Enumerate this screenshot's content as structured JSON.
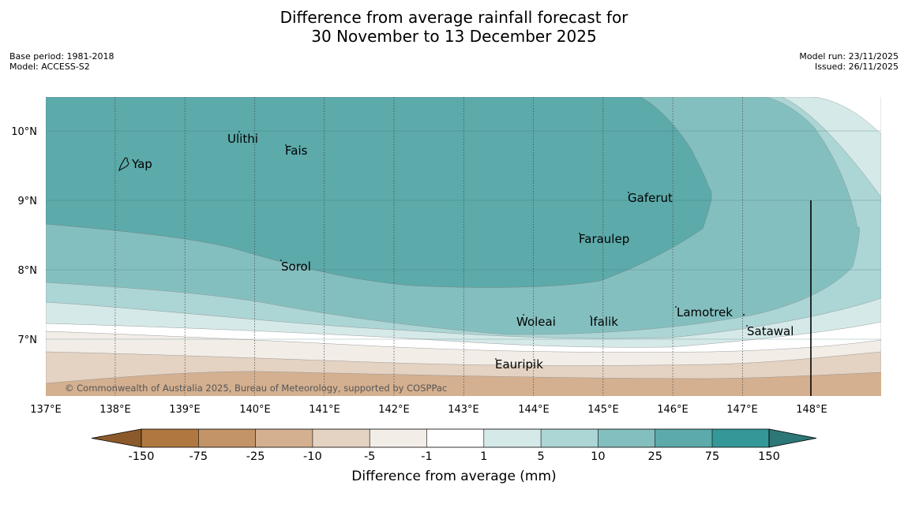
{
  "title": {
    "line1": "Difference from average rainfall forecast for",
    "line2": "30 November to 13 December 2025"
  },
  "meta": {
    "base_period": "Base period: 1981-2018",
    "model": "Model: ACCESS-S2",
    "model_run": "Model run: 23/11/2025",
    "issued": "Issued: 26/11/2025"
  },
  "map": {
    "lon_labels": [
      "137°E",
      "138°E",
      "139°E",
      "140°E",
      "141°E",
      "142°E",
      "143°E",
      "144°E",
      "145°E",
      "146°E",
      "147°E",
      "148°E"
    ],
    "lat_labels": [
      "10°N",
      "9°N",
      "8°N",
      "7°N"
    ],
    "places": [
      "Ulithi",
      "Fais",
      "Yap",
      "Gaferut",
      "Faraulep",
      "Sorol",
      "Lamotrek",
      "Woleai",
      "Ifalik",
      "Satawal",
      "Eauripik"
    ],
    "copyright": "© Commonwealth of Australia 2025, Bureau of Meteorology, supported by COSPPac"
  },
  "colorbar": {
    "ticks": [
      "-150",
      "-75",
      "-25",
      "-10",
      "-5",
      "-1",
      "1",
      "5",
      "10",
      "25",
      "75",
      "150"
    ],
    "colors": {
      "below_min": "#8c5a2a",
      "bins": [
        "#b07840",
        "#c29468",
        "#d4b090",
        "#e4d2c2",
        "#f2ede7",
        "#ffffff",
        "#d5e9e9",
        "#acd5d5",
        "#84bfbf",
        "#5caaaa",
        "#349898"
      ],
      "above_max": "#2d7777"
    },
    "label": "Difference from average (mm)"
  }
}
